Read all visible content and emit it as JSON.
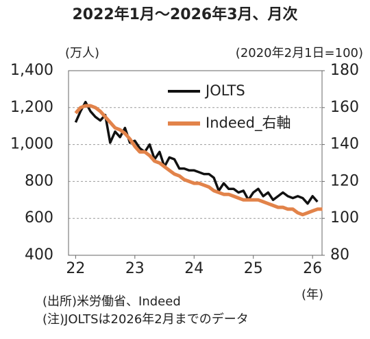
{
  "chart_data": {
    "type": "line",
    "title": "2022年1月～2026年3月、月次",
    "y_label": "(万人)",
    "y2_label": "(2020年2月1日=100)",
    "x_label": "(年)",
    "notes": [
      "(出所)米労働省、Indeed",
      "(注)JOLTSは2026年2月までのデータ"
    ],
    "xlim": [
      21.88,
      26.16
    ],
    "xticks": [
      22,
      23,
      24,
      25,
      26
    ],
    "ylim": [
      400,
      1400
    ],
    "yticks": [
      {
        "value": 1400,
        "label": "1,400"
      },
      {
        "value": 1200,
        "label": "1,200"
      },
      {
        "value": 1000,
        "label": "1,000"
      },
      800,
      600,
      400
    ],
    "y2lim": [
      80,
      180
    ],
    "y2ticks": [
      180,
      160,
      140,
      120,
      100,
      80
    ],
    "grid": true,
    "legend": "upper-right",
    "series": [
      {
        "name": "JOLTS",
        "color": "#111111",
        "x": [
          22,
          22.083,
          22.167,
          22.25,
          22.333,
          22.417,
          22.5,
          22.583,
          22.667,
          22.75,
          22.833,
          22.917,
          23,
          23.083,
          23.167,
          23.25,
          23.333,
          23.417,
          23.5,
          23.583,
          23.667,
          23.75,
          23.833,
          23.917,
          24,
          24.083,
          24.167,
          24.25,
          24.333,
          24.417,
          24.5,
          24.583,
          24.667,
          24.75,
          24.833,
          24.917,
          25,
          25.083,
          25.167,
          25.25,
          25.333,
          25.417,
          25.5,
          25.583,
          25.667,
          25.75,
          25.833,
          25.917,
          26,
          26.083
        ],
        "values": [
          1120,
          1180,
          1230,
          1180,
          1150,
          1130,
          1160,
          1010,
          1070,
          1040,
          1090,
          1010,
          1020,
          980,
          960,
          1000,
          920,
          960,
          880,
          930,
          920,
          870,
          870,
          860,
          860,
          850,
          840,
          840,
          820,
          750,
          790,
          760,
          760,
          740,
          750,
          700,
          740,
          760,
          720,
          740,
          700,
          720,
          740,
          720,
          710,
          720,
          710,
          680,
          720,
          690
        ]
      },
      {
        "name": "Indeed_右軸",
        "color": "#e2834a",
        "axis": "y2",
        "x": [
          22,
          22.083,
          22.167,
          22.25,
          22.333,
          22.417,
          22.5,
          22.583,
          22.667,
          22.75,
          22.833,
          22.917,
          23,
          23.083,
          23.167,
          23.25,
          23.333,
          23.417,
          23.5,
          23.583,
          23.667,
          23.75,
          23.833,
          23.917,
          24,
          24.083,
          24.167,
          24.25,
          24.333,
          24.417,
          24.5,
          24.583,
          24.667,
          24.75,
          24.833,
          24.917,
          25,
          25.083,
          25.167,
          25.25,
          25.333,
          25.417,
          25.5,
          25.583,
          25.667,
          25.75,
          25.833,
          25.917,
          26,
          26.083,
          26.167
        ],
        "values": [
          157,
          160,
          161,
          161,
          160,
          158,
          155,
          152,
          149,
          148,
          146,
          143,
          139,
          136,
          136,
          134,
          131,
          130,
          128,
          126,
          124,
          123,
          121,
          120,
          119,
          119,
          118,
          117,
          115,
          114,
          113,
          113,
          112,
          111,
          110,
          110,
          110,
          110,
          109,
          108,
          107,
          106,
          106,
          105,
          105,
          103,
          102,
          103,
          104,
          105,
          105
        ]
      }
    ]
  }
}
